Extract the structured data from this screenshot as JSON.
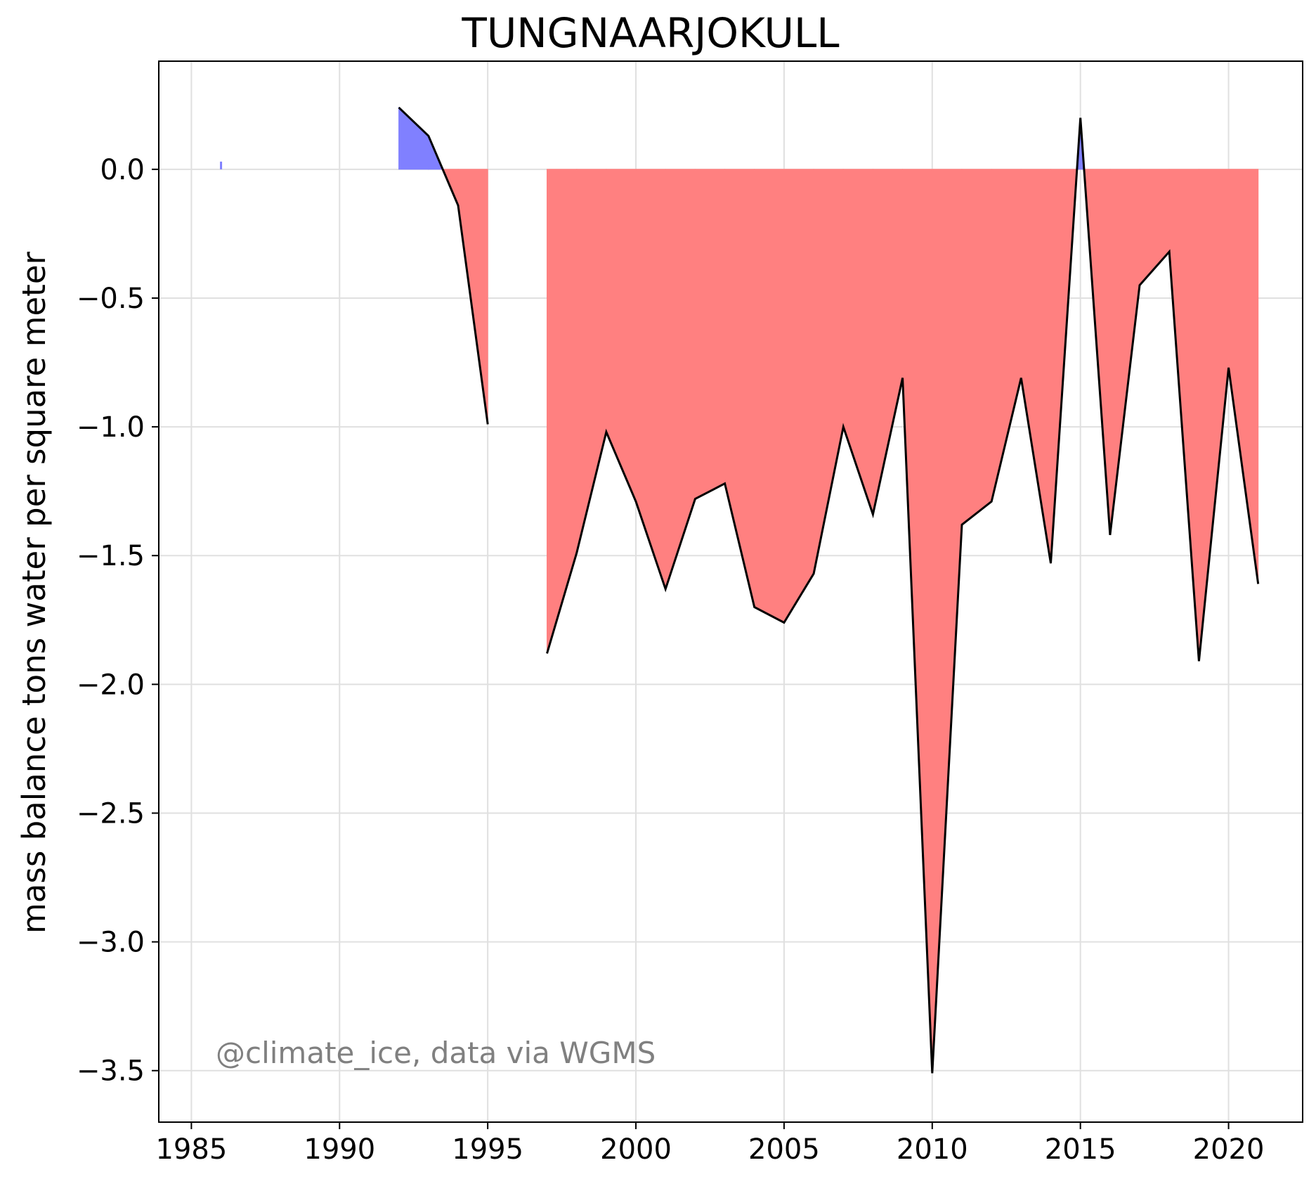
{
  "chart_data": {
    "type": "area",
    "title": "TUNGNAARJOKULL",
    "xlabel": "",
    "ylabel": "mass balance tons water per square meter",
    "annotation": "@climate_ice, data via WGMS",
    "xlim": [
      1983.9,
      2022.5
    ],
    "ylim": [
      -3.7,
      0.42
    ],
    "x_ticks": [
      1985,
      1990,
      1995,
      2000,
      2005,
      2010,
      2015,
      2020
    ],
    "y_ticks": [
      0.0,
      -0.5,
      -1.0,
      -1.5,
      -2.0,
      -2.5,
      -3.0,
      -3.5
    ],
    "y_tick_labels": [
      "0.0",
      "−0.5",
      "−1.0",
      "−1.5",
      "−2.0",
      "−2.5",
      "−3.0",
      "−3.5"
    ],
    "grid": true,
    "colors": {
      "positive_fill": "#8080ff",
      "negative_fill": "#ff8080",
      "line": "#000000",
      "grid": "#e0e0e0"
    },
    "segments": [
      {
        "x": [
          1986
        ],
        "y": [
          0.03
        ]
      },
      {
        "x": [
          1992,
          1993,
          1994,
          1995
        ],
        "y": [
          0.24,
          0.13,
          -0.14,
          -0.99
        ]
      },
      {
        "x": [
          1997,
          1998,
          1999,
          2000,
          2001,
          2002,
          2003,
          2004,
          2005,
          2006,
          2007,
          2008,
          2009,
          2010,
          2011,
          2012,
          2013,
          2014,
          2015,
          2016,
          2017,
          2018,
          2019,
          2020,
          2021
        ],
        "y": [
          -1.88,
          -1.49,
          -1.02,
          -1.29,
          -1.63,
          -1.28,
          -1.22,
          -1.7,
          -1.76,
          -1.57,
          -1.0,
          -1.34,
          -0.81,
          -3.51,
          -1.38,
          -1.29,
          -0.81,
          -1.53,
          0.2,
          -1.42,
          -0.45,
          -0.32,
          -1.91,
          -0.77,
          -1.61
        ]
      }
    ]
  }
}
